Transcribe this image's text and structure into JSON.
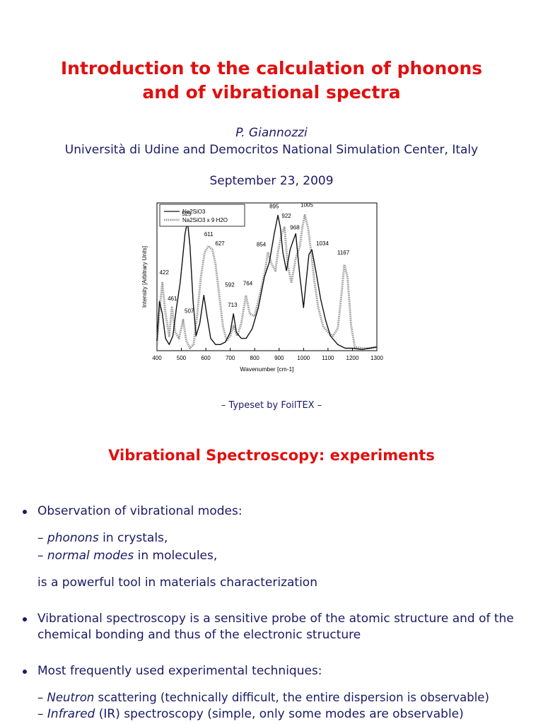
{
  "title_line1": "Introduction to the calculation of phonons",
  "title_line2": "and of vibrational spectra",
  "author": "P. Giannozzi",
  "affiliation": "Università di Udine and Democritos National Simulation Center, Italy",
  "date": "September 23, 2009",
  "typeset_prefix": "– Typeset by Foil",
  "typeset_tex": "TEX",
  "typeset_suffix": " –",
  "section_title": "Vibrational Spectroscopy: experiments",
  "bullets": [
    {
      "text": "Observation of vibrational modes:",
      "subs": [
        {
          "em": "phonons",
          "rest": " in crystals,"
        },
        {
          "em": "normal modes",
          "rest": " in molecules,"
        }
      ],
      "tail": "is a powerful tool in materials characterization"
    },
    {
      "line1": "Vibrational spectroscopy is a sensitive probe of the atomic structure and of the",
      "line2": "chemical bonding and thus of the electronic structure"
    },
    {
      "text": "Most frequently used experimental techniques:",
      "subs": [
        {
          "em": "Neutron",
          "rest": " scattering (technically difficult, the entire dispersion is observable)"
        },
        {
          "em": "Infrared",
          "rest": " (IR) spectroscopy (simple, only some modes are observable)"
        }
      ]
    }
  ],
  "chart_data": {
    "type": "line",
    "xlabel": "Wavenumber [cm-1]",
    "ylabel": "Intensity [Arbitrary Units]",
    "xlim": [
      400,
      1300
    ],
    "xticks": [
      400,
      500,
      600,
      700,
      800,
      900,
      1000,
      1100,
      1200,
      1300
    ],
    "legend_position": "top-left",
    "series": [
      {
        "name": "Na2SiO3",
        "x": [
          400,
          410,
          422,
          435,
          450,
          465,
          480,
          495,
          505,
          515,
          525,
          535,
          548,
          560,
          575,
          592,
          605,
          620,
          640,
          660,
          680,
          700,
          713,
          725,
          745,
          765,
          790,
          815,
          840,
          860,
          880,
          895,
          905,
          915,
          930,
          945,
          955,
          968,
          985,
          1000,
          1010,
          1022,
          1034,
          1050,
          1070,
          1090,
          1110,
          1140,
          1170,
          1200,
          1240,
          1270,
          1300
        ],
        "y": [
          0.08,
          0.4,
          0.3,
          0.1,
          0.05,
          0.12,
          0.35,
          0.55,
          0.75,
          0.95,
          1.05,
          0.85,
          0.4,
          0.12,
          0.22,
          0.45,
          0.28,
          0.1,
          0.05,
          0.05,
          0.07,
          0.15,
          0.3,
          0.15,
          0.1,
          0.1,
          0.18,
          0.35,
          0.6,
          0.72,
          0.95,
          1.1,
          1.0,
          0.8,
          0.65,
          0.82,
          0.88,
          0.95,
          0.6,
          0.35,
          0.55,
          0.78,
          0.82,
          0.65,
          0.42,
          0.25,
          0.12,
          0.05,
          0.02,
          0.02,
          0.01,
          0.02,
          0.03
        ]
      },
      {
        "name": "Na2SiO3 x 9 H2O",
        "x": [
          400,
          410,
          422,
          435,
          450,
          461,
          475,
          490,
          507,
          520,
          535,
          550,
          565,
          580,
          595,
          611,
          627,
          640,
          655,
          670,
          685,
          700,
          713,
          728,
          745,
          764,
          780,
          800,
          820,
          840,
          854,
          870,
          885,
          895,
          910,
          922,
          935,
          950,
          968,
          985,
          995,
          1005,
          1018,
          1030,
          1045,
          1060,
          1080,
          1100,
          1120,
          1140,
          1155,
          1167,
          1180,
          1195,
          1210,
          1240,
          1270,
          1300
        ],
        "y": [
          0.05,
          0.32,
          0.55,
          0.3,
          0.12,
          0.35,
          0.15,
          0.1,
          0.25,
          0.08,
          0.02,
          0.05,
          0.3,
          0.6,
          0.8,
          0.85,
          0.82,
          0.7,
          0.45,
          0.2,
          0.08,
          0.12,
          0.2,
          0.12,
          0.22,
          0.45,
          0.3,
          0.28,
          0.45,
          0.62,
          0.8,
          0.7,
          0.65,
          0.8,
          0.95,
          1.0,
          0.7,
          0.55,
          0.75,
          0.85,
          1.0,
          1.1,
          1.0,
          0.82,
          0.55,
          0.35,
          0.2,
          0.15,
          0.12,
          0.18,
          0.45,
          0.7,
          0.6,
          0.2,
          0.03,
          0.02,
          0.02,
          0.03
        ]
      }
    ],
    "annotations": [
      {
        "x": 422,
        "label": "422"
      },
      {
        "x": 461,
        "label": "461"
      },
      {
        "x": 507,
        "label": "507"
      },
      {
        "x": 525,
        "label": "525"
      },
      {
        "x": 592,
        "label": "592"
      },
      {
        "x": 611,
        "label": "611"
      },
      {
        "x": 627,
        "label": "627"
      },
      {
        "x": 713,
        "label": "713"
      },
      {
        "x": 764,
        "label": "764"
      },
      {
        "x": 854,
        "label": "854"
      },
      {
        "x": 895,
        "label": "895"
      },
      {
        "x": 922,
        "label": "922"
      },
      {
        "x": 968,
        "label": "968"
      },
      {
        "x": 1005,
        "label": "1005"
      },
      {
        "x": 1034,
        "label": "1034"
      },
      {
        "x": 1167,
        "label": "1167"
      }
    ]
  }
}
